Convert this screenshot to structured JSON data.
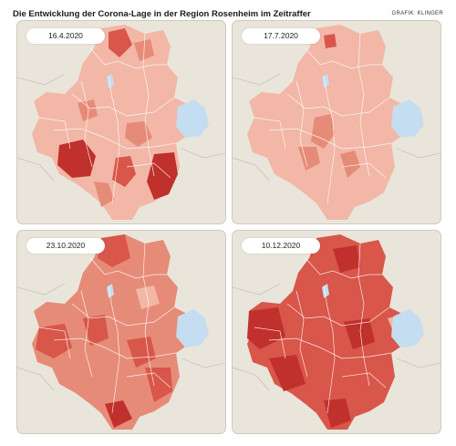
{
  "header": {
    "title": "Die Entwicklung der Corona-Lage in der Region Rosenheim im Zeitraffer",
    "credit": "GRAFIK: KLINGER"
  },
  "colors": {
    "background": "#e9e5da",
    "lake": "#c5ddf0",
    "level_1": "#f2b7a7",
    "level_2": "#e68b78",
    "level_3": "#d8564a",
    "level_4": "#c0302c"
  },
  "panels": [
    {
      "date": "16.4.2020",
      "base_level": "level_1"
    },
    {
      "date": "17.7.2020",
      "base_level": "level_1"
    },
    {
      "date": "23.10.2020",
      "base_level": "level_2"
    },
    {
      "date": "10.12.2020",
      "base_level": "level_3"
    }
  ]
}
